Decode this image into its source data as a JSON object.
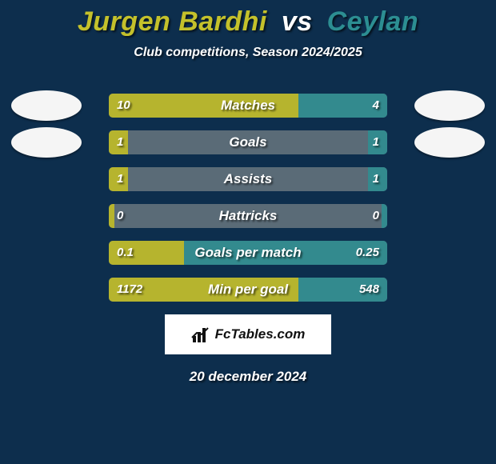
{
  "title": {
    "player1": "Jurgen Bardhi",
    "vs": "vs",
    "player2": "Ceylan"
  },
  "subtitle": "Club competitions, Season 2024/2025",
  "colors": {
    "background": "#0d2e4d",
    "track": "#5a6b77",
    "player1_bar": "#b6b42e",
    "player2_bar": "#338a8e",
    "player1_title": "#c4c12b",
    "player2_title": "#2c8e92"
  },
  "avatars": {
    "show_on_rows": [
      0,
      1
    ]
  },
  "stats": [
    {
      "label": "Matches",
      "p1_value": "10",
      "p2_value": "4",
      "p1_pct": 68,
      "p2_pct": 32
    },
    {
      "label": "Goals",
      "p1_value": "1",
      "p2_value": "1",
      "p1_pct": 7,
      "p2_pct": 7
    },
    {
      "label": "Assists",
      "p1_value": "1",
      "p2_value": "1",
      "p1_pct": 7,
      "p2_pct": 7
    },
    {
      "label": "Hattricks",
      "p1_value": "0",
      "p2_value": "0",
      "p1_pct": 2,
      "p2_pct": 2
    },
    {
      "label": "Goals per match",
      "p1_value": "0.1",
      "p2_value": "0.25",
      "p1_pct": 27,
      "p2_pct": 73
    },
    {
      "label": "Min per goal",
      "p1_value": "1172",
      "p2_value": "548",
      "p1_pct": 68,
      "p2_pct": 32
    }
  ],
  "badge": {
    "text": "FcTables.com"
  },
  "date": "20 december 2024"
}
